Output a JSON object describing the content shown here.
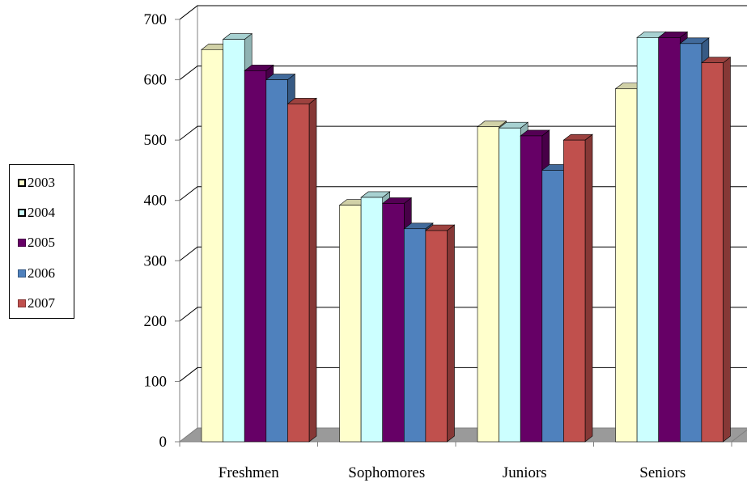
{
  "chart_data": {
    "type": "bar",
    "title": "",
    "xlabel": "",
    "ylabel": "",
    "categories": [
      "Freshmen",
      "Sophomores",
      "Juniors",
      "Seniors"
    ],
    "ylim": [
      0,
      700
    ],
    "yticks": [
      0,
      100,
      200,
      300,
      400,
      500,
      600,
      700
    ],
    "grid": true,
    "legend_position": "left",
    "series": [
      {
        "name": "2003",
        "color": "#FFFFCC",
        "values": [
          650,
          392,
          522,
          585
        ]
      },
      {
        "name": "2004",
        "color": "#CCFFFF",
        "values": [
          667,
          405,
          520,
          670
        ]
      },
      {
        "name": "2005",
        "color": "#660066",
        "values": [
          615,
          395,
          507,
          670
        ]
      },
      {
        "name": "2006",
        "color": "#4F81BD",
        "values": [
          600,
          353,
          450,
          660
        ]
      },
      {
        "name": "2007",
        "color": "#C0504D",
        "values": [
          560,
          350,
          500,
          628
        ]
      }
    ]
  }
}
